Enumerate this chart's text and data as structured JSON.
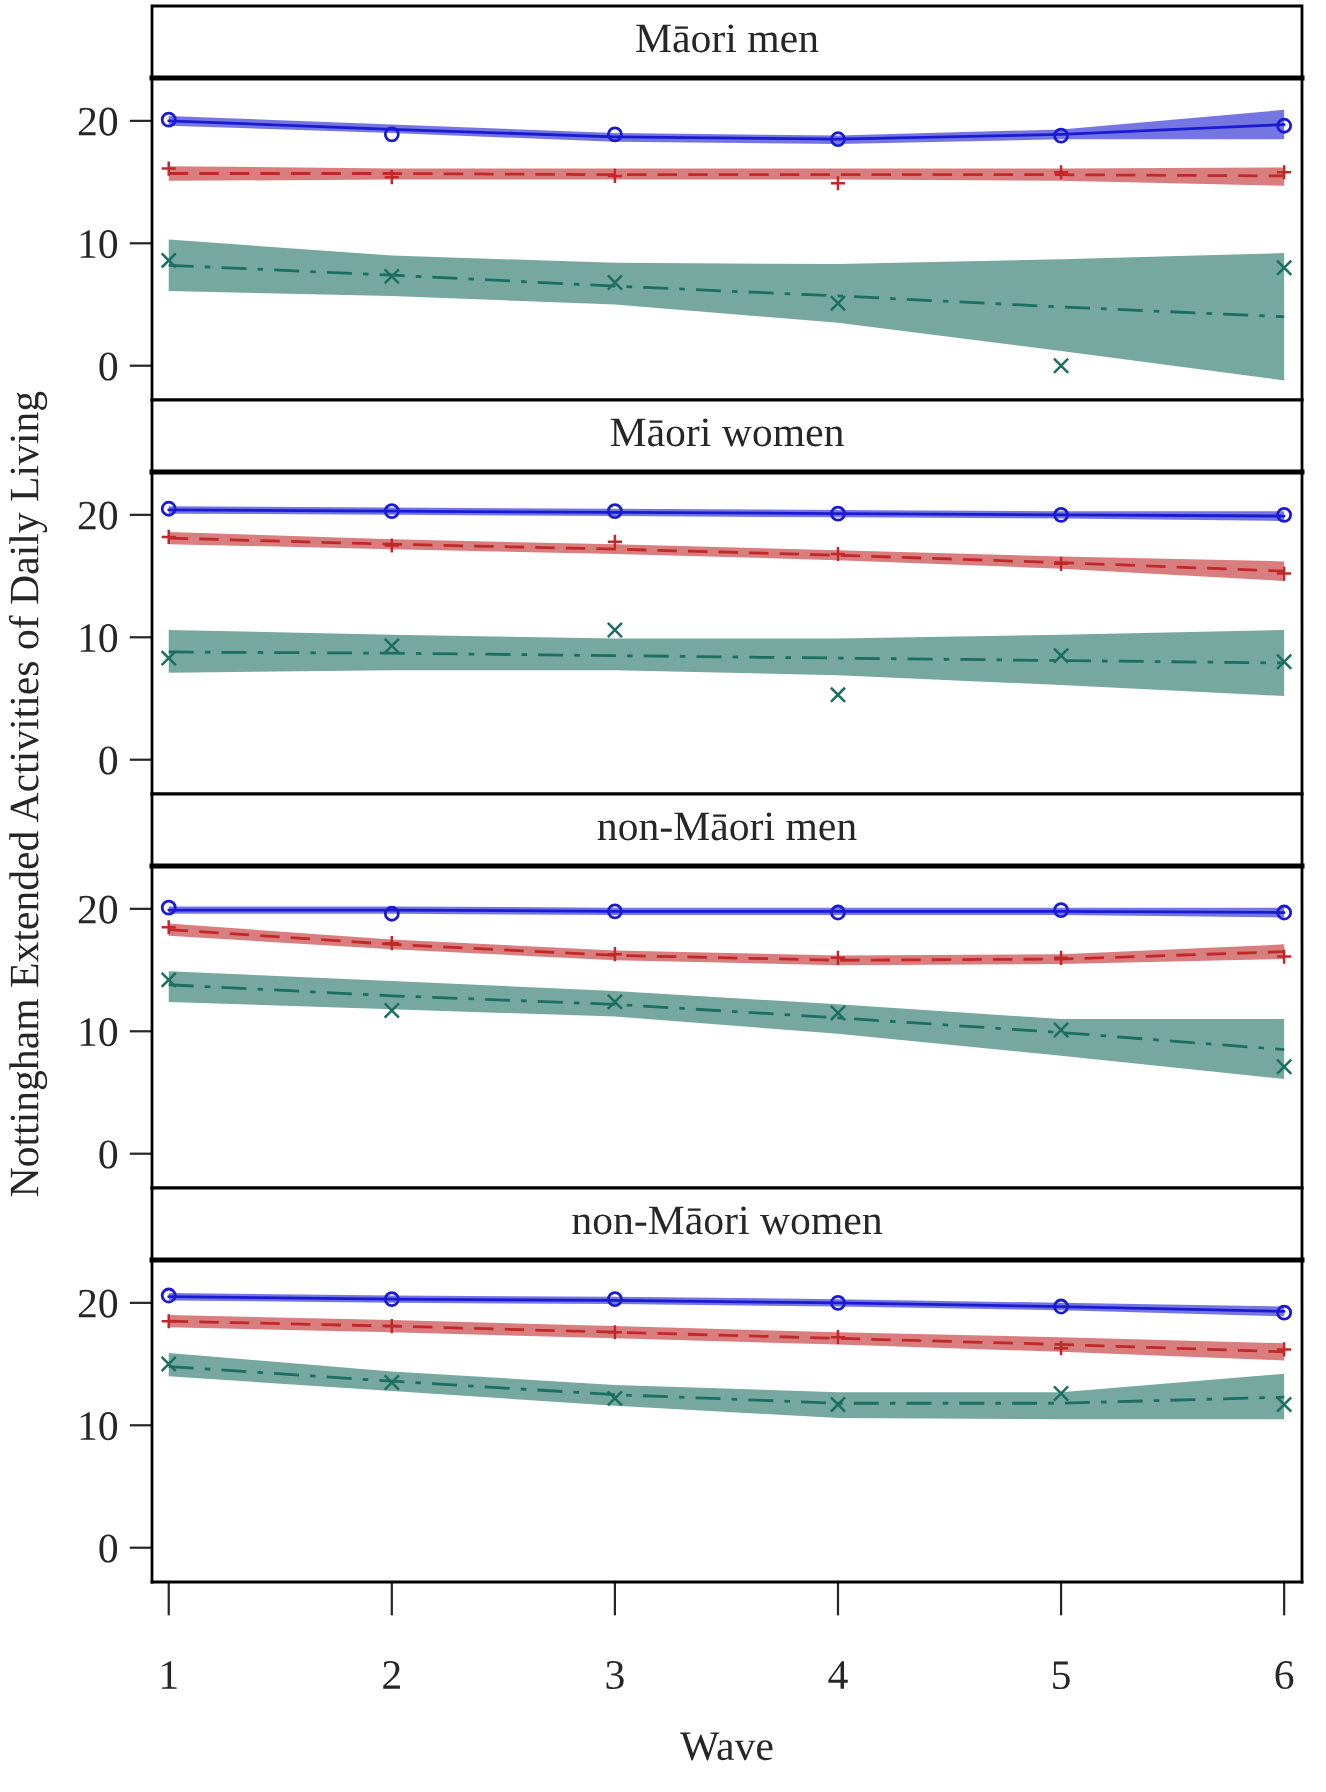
{
  "chart_data": [
    {
      "type": "line",
      "title": "Māori men",
      "ylabel": "Nottingham Extended Activities of Daily Living",
      "x": [
        1,
        2,
        3,
        4,
        5,
        6
      ],
      "xlim": [
        0.925,
        6.08
      ],
      "ylim": [
        -2.8,
        23.5
      ],
      "yticks": [
        0,
        10,
        20
      ],
      "tick_labels": "y",
      "series": [
        {
          "type": "line",
          "color": "#1a1ad0",
          "line_style": "solid",
          "marker": "none",
          "values": [
            20.0,
            19.3,
            18.7,
            18.5,
            18.9,
            19.7
          ],
          "lower": [
            19.6,
            19.0,
            18.3,
            18.1,
            18.5,
            18.5
          ],
          "upper": [
            20.4,
            19.7,
            19.0,
            18.8,
            19.3,
            20.9
          ]
        },
        {
          "type": "line",
          "color": "#c0282a",
          "line_style": "dashed",
          "marker": "none",
          "values": [
            15.7,
            15.7,
            15.6,
            15.6,
            15.6,
            15.5
          ],
          "lower": [
            15.1,
            15.2,
            15.2,
            15.2,
            15.1,
            14.7
          ],
          "upper": [
            16.3,
            16.1,
            16.1,
            16.1,
            16.1,
            16.2
          ]
        },
        {
          "type": "line",
          "color": "#1b6e60",
          "line_style": "dashdot",
          "marker": "none",
          "values": [
            8.2,
            7.4,
            6.5,
            5.7,
            4.8,
            4.0
          ],
          "lower": [
            6.1,
            5.7,
            5.0,
            3.5,
            1.2,
            -1.2
          ],
          "upper": [
            10.3,
            9.0,
            8.4,
            8.3,
            8.7,
            9.2
          ]
        },
        {
          "type": "scatter",
          "color": "#1a1ad0",
          "marker": "circle",
          "values": [
            20.1,
            18.9,
            18.9,
            18.5,
            18.8,
            19.6
          ]
        },
        {
          "type": "scatter",
          "color": "#c0282a",
          "marker": "plus",
          "values": [
            16.1,
            15.4,
            15.5,
            14.9,
            15.8,
            15.8
          ]
        },
        {
          "type": "scatter",
          "color": "#1b6e60",
          "marker": "cross",
          "values": [
            8.6,
            7.3,
            6.8,
            5.1,
            0,
            8.0
          ]
        }
      ]
    },
    {
      "type": "line",
      "title": "Māori women",
      "x": [
        1,
        2,
        3,
        4,
        5,
        6
      ],
      "xlim": [
        0.925,
        6.08
      ],
      "ylim": [
        -2.8,
        23.5
      ],
      "yticks": [
        0,
        10,
        20
      ],
      "tick_labels": "y",
      "series": [
        {
          "type": "line",
          "color": "#1a1ad0",
          "line_style": "solid",
          "marker": "none",
          "values": [
            20.4,
            20.3,
            20.2,
            20.1,
            20.0,
            19.9
          ],
          "lower": [
            20.1,
            20.0,
            19.9,
            19.8,
            19.7,
            19.5
          ],
          "upper": [
            20.7,
            20.6,
            20.5,
            20.4,
            20.3,
            20.3
          ]
        },
        {
          "type": "line",
          "color": "#c0282a",
          "line_style": "dashed",
          "marker": "none",
          "values": [
            18.1,
            17.6,
            17.2,
            16.7,
            16.1,
            15.4
          ],
          "lower": [
            17.6,
            17.2,
            16.8,
            16.3,
            15.6,
            14.6
          ],
          "upper": [
            18.6,
            18.0,
            17.6,
            17.1,
            16.6,
            16.2
          ]
        },
        {
          "type": "line",
          "color": "#1b6e60",
          "line_style": "dashdot",
          "marker": "none",
          "values": [
            8.8,
            8.7,
            8.5,
            8.3,
            8.1,
            7.9
          ],
          "lower": [
            7.1,
            7.3,
            7.3,
            6.9,
            6.1,
            5.2
          ],
          "upper": [
            10.6,
            10.2,
            9.9,
            9.9,
            10.2,
            10.6
          ]
        },
        {
          "type": "scatter",
          "color": "#1a1ad0",
          "marker": "circle",
          "values": [
            20.5,
            20.3,
            20.3,
            20.1,
            20.0,
            20.0
          ]
        },
        {
          "type": "scatter",
          "color": "#c0282a",
          "marker": "plus",
          "values": [
            18.2,
            17.5,
            17.8,
            16.8,
            16.0,
            15.2
          ]
        },
        {
          "type": "scatter",
          "color": "#1b6e60",
          "marker": "cross",
          "values": [
            8.3,
            9.3,
            10.6,
            5.3,
            8.5,
            8.0
          ]
        }
      ]
    },
    {
      "type": "line",
      "title": "non-Māori men",
      "x": [
        1,
        2,
        3,
        4,
        5,
        6
      ],
      "xlim": [
        0.925,
        6.08
      ],
      "ylim": [
        -2.8,
        23.5
      ],
      "yticks": [
        0,
        10,
        20
      ],
      "tick_labels": "y",
      "series": [
        {
          "type": "line",
          "color": "#1a1ad0",
          "line_style": "solid",
          "marker": "none",
          "values": [
            19.9,
            19.9,
            19.8,
            19.8,
            19.8,
            19.7
          ],
          "lower": [
            19.6,
            19.6,
            19.5,
            19.5,
            19.5,
            19.3
          ],
          "upper": [
            20.2,
            20.2,
            20.1,
            20.1,
            20.1,
            20.1
          ]
        },
        {
          "type": "line",
          "color": "#c0282a",
          "line_style": "dashed",
          "marker": "none",
          "values": [
            18.3,
            17.1,
            16.2,
            15.8,
            15.9,
            16.5
          ],
          "lower": [
            17.8,
            16.7,
            15.8,
            15.4,
            15.5,
            15.9
          ],
          "upper": [
            18.8,
            17.5,
            16.6,
            16.2,
            16.3,
            17.1
          ]
        },
        {
          "type": "line",
          "color": "#1b6e60",
          "line_style": "dashdot",
          "marker": "none",
          "values": [
            13.8,
            12.9,
            12.2,
            11.1,
            9.9,
            8.5
          ],
          "lower": [
            12.4,
            11.8,
            11.2,
            9.8,
            8.0,
            6.1
          ],
          "upper": [
            14.9,
            14.1,
            13.3,
            12.2,
            11.0,
            11.0
          ]
        },
        {
          "type": "scatter",
          "color": "#1a1ad0",
          "marker": "circle",
          "values": [
            20.1,
            19.6,
            19.8,
            19.7,
            19.9,
            19.7
          ]
        },
        {
          "type": "scatter",
          "color": "#c0282a",
          "marker": "plus",
          "values": [
            18.5,
            17.2,
            16.3,
            16.0,
            16.0,
            16.1
          ]
        },
        {
          "type": "scatter",
          "color": "#1b6e60",
          "marker": "cross",
          "values": [
            14.2,
            11.7,
            12.4,
            11.5,
            10.1,
            7.1
          ]
        }
      ]
    },
    {
      "type": "line",
      "title": "non-Māori women",
      "xlabel": "Wave",
      "x": [
        1,
        2,
        3,
        4,
        5,
        6
      ],
      "xlim": [
        0.925,
        6.08
      ],
      "ylim": [
        -2.8,
        23.5
      ],
      "xticks": [
        1,
        2,
        3,
        4,
        5,
        6
      ],
      "yticks": [
        0,
        10,
        20
      ],
      "series": [
        {
          "type": "line",
          "color": "#1a1ad0",
          "line_style": "solid",
          "marker": "none",
          "values": [
            20.5,
            20.3,
            20.2,
            20.0,
            19.7,
            19.3
          ],
          "lower": [
            20.2,
            20.0,
            19.9,
            19.7,
            19.4,
            18.9
          ],
          "upper": [
            20.8,
            20.6,
            20.5,
            20.3,
            20.0,
            19.7
          ]
        },
        {
          "type": "line",
          "color": "#c0282a",
          "line_style": "dashed",
          "marker": "none",
          "values": [
            18.5,
            18.1,
            17.6,
            17.1,
            16.6,
            16.0
          ],
          "lower": [
            18.0,
            17.6,
            17.1,
            16.6,
            16.0,
            15.3
          ],
          "upper": [
            19.0,
            18.6,
            18.1,
            17.6,
            17.2,
            16.7
          ]
        },
        {
          "type": "line",
          "color": "#1b6e60",
          "line_style": "dashdot",
          "marker": "none",
          "values": [
            14.8,
            13.6,
            12.5,
            11.8,
            11.8,
            12.3
          ],
          "lower": [
            14.0,
            12.8,
            11.6,
            10.6,
            10.5,
            10.5
          ],
          "upper": [
            15.9,
            14.4,
            13.3,
            12.7,
            12.7,
            14.2
          ]
        },
        {
          "type": "scatter",
          "color": "#1a1ad0",
          "marker": "circle",
          "values": [
            20.6,
            20.3,
            20.3,
            20.0,
            19.7,
            19.2
          ]
        },
        {
          "type": "scatter",
          "color": "#c0282a",
          "marker": "plus",
          "values": [
            18.5,
            18.1,
            17.6,
            17.2,
            16.3,
            16.2
          ]
        },
        {
          "type": "scatter",
          "color": "#1b6e60",
          "marker": "cross",
          "values": [
            15.0,
            13.5,
            12.2,
            11.7,
            12.6,
            11.7
          ]
        }
      ]
    }
  ]
}
